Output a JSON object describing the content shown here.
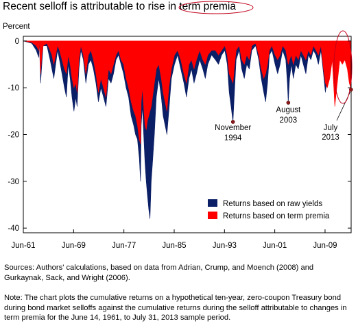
{
  "title": "Recent selloff is attributable to rise in term premia",
  "ylabel_unit": "Percent",
  "sources": "Sources: Authors' calculations, based on data from Adrian, Crump, and Moench (2008) and Gurkaynak, Sack, and Wright (2006).",
  "note": "Note: The chart plots the cumulative returns on a hypothetical ten-year, zero-coupon Treasury bond during bond market selloffs against the cumulative returns during the selloff attributable to changes in term premia for the June 14, 1961, to July 31, 2013 sample period.",
  "colors": {
    "raw": "#0b1f66",
    "term": "#ff0000",
    "highlight": "#c0001a",
    "marker": "#8b1a1a"
  },
  "chart_data": {
    "type": "area",
    "xlim": [
      1961.45,
      2013.6
    ],
    "ylim": [
      -41,
      1
    ],
    "x_tick_values": [
      1961.45,
      1969.45,
      1977.45,
      1985.45,
      1993.45,
      2001.45,
      2009.45
    ],
    "x_tick_labels": [
      "Jun-61",
      "Jun-69",
      "Jun-77",
      "Jun-85",
      "Jun-93",
      "Jun-01",
      "Jun-09"
    ],
    "y_ticks": [
      0,
      -10,
      -20,
      -30,
      -40
    ],
    "y_tick_labels": [
      "0",
      "-10",
      "-20",
      "-30",
      "-40"
    ],
    "legend_position": "bottom-right",
    "grid": false,
    "series": [
      {
        "name": "Returns based on raw yields",
        "color": "#0b1f66",
        "points": [
          [
            1961.45,
            0
          ],
          [
            1962.8,
            -0.5
          ],
          [
            1963.5,
            -2
          ],
          [
            1963.9,
            -3.5
          ],
          [
            1964.0,
            0
          ],
          [
            1964.2,
            -9
          ],
          [
            1964.4,
            -5
          ],
          [
            1964.6,
            -1
          ],
          [
            1965.2,
            -1
          ],
          [
            1965.7,
            -4
          ],
          [
            1966.0,
            -6
          ],
          [
            1966.3,
            -8
          ],
          [
            1966.6,
            -5
          ],
          [
            1966.9,
            -2
          ],
          [
            1967.2,
            -4
          ],
          [
            1967.6,
            -7
          ],
          [
            1968.0,
            -10
          ],
          [
            1968.3,
            -12
          ],
          [
            1968.6,
            -5
          ],
          [
            1968.9,
            -8
          ],
          [
            1969.2,
            -12
          ],
          [
            1969.5,
            -15
          ],
          [
            1969.8,
            -12
          ],
          [
            1970.0,
            -14
          ],
          [
            1970.3,
            -6
          ],
          [
            1970.6,
            -2
          ],
          [
            1971.0,
            -4
          ],
          [
            1971.4,
            -9
          ],
          [
            1971.8,
            -5
          ],
          [
            1972.2,
            -4
          ],
          [
            1972.6,
            -6
          ],
          [
            1973.0,
            -9
          ],
          [
            1973.4,
            -13
          ],
          [
            1973.8,
            -10
          ],
          [
            1974.2,
            -12
          ],
          [
            1974.6,
            -14
          ],
          [
            1975.0,
            -8
          ],
          [
            1975.4,
            -9
          ],
          [
            1975.8,
            -7
          ],
          [
            1976.2,
            -4
          ],
          [
            1976.6,
            -3
          ],
          [
            1977.0,
            -5
          ],
          [
            1977.4,
            -7
          ],
          [
            1977.8,
            -10
          ],
          [
            1978.2,
            -12
          ],
          [
            1978.6,
            -16
          ],
          [
            1979.0,
            -18
          ],
          [
            1979.3,
            -20
          ],
          [
            1979.6,
            -21
          ],
          [
            1979.9,
            -25
          ],
          [
            1980.1,
            -30
          ],
          [
            1980.2,
            -18
          ],
          [
            1980.4,
            -14
          ],
          [
            1980.6,
            -20
          ],
          [
            1980.8,
            -26
          ],
          [
            1981.0,
            -30
          ],
          [
            1981.2,
            -33
          ],
          [
            1981.4,
            -36
          ],
          [
            1981.6,
            -38
          ],
          [
            1981.8,
            -30
          ],
          [
            1982.0,
            -26
          ],
          [
            1982.3,
            -20
          ],
          [
            1982.6,
            -12
          ],
          [
            1983.0,
            -8
          ],
          [
            1983.4,
            -12
          ],
          [
            1983.7,
            -16
          ],
          [
            1984.0,
            -18
          ],
          [
            1984.3,
            -20
          ],
          [
            1984.6,
            -15
          ],
          [
            1985.0,
            -8
          ],
          [
            1985.5,
            -5
          ],
          [
            1986.0,
            -3
          ],
          [
            1986.5,
            -6
          ],
          [
            1987.0,
            -9
          ],
          [
            1987.4,
            -12
          ],
          [
            1987.8,
            -8
          ],
          [
            1988.2,
            -6
          ],
          [
            1988.6,
            -9
          ],
          [
            1989.0,
            -7
          ],
          [
            1989.5,
            -4
          ],
          [
            1990.0,
            -6
          ],
          [
            1990.4,
            -8
          ],
          [
            1990.8,
            -5
          ],
          [
            1991.4,
            -3
          ],
          [
            1992.0,
            -4
          ],
          [
            1992.5,
            -5
          ],
          [
            1993.0,
            -3
          ],
          [
            1993.5,
            -2
          ],
          [
            1993.9,
            -5
          ],
          [
            1994.2,
            -11
          ],
          [
            1994.5,
            -14
          ],
          [
            1994.8,
            -17.3
          ],
          [
            1995.0,
            -12
          ],
          [
            1995.3,
            -4
          ],
          [
            1995.8,
            -2
          ],
          [
            1996.2,
            -6
          ],
          [
            1996.6,
            -8
          ],
          [
            1997.0,
            -5
          ],
          [
            1997.4,
            -6
          ],
          [
            1997.8,
            -2
          ],
          [
            1998.4,
            -1
          ],
          [
            1998.9,
            -4
          ],
          [
            1999.3,
            -8
          ],
          [
            1999.7,
            -11
          ],
          [
            2000.0,
            -13
          ],
          [
            2000.3,
            -9
          ],
          [
            2000.6,
            -3
          ],
          [
            2001.0,
            -2
          ],
          [
            2001.5,
            -5
          ],
          [
            2001.9,
            -7
          ],
          [
            2002.3,
            -5
          ],
          [
            2002.7,
            -2
          ],
          [
            2003.2,
            -4
          ],
          [
            2003.45,
            -9
          ],
          [
            2003.6,
            -13.2
          ],
          [
            2003.8,
            -8
          ],
          [
            2004.1,
            -5
          ],
          [
            2004.4,
            -8
          ],
          [
            2004.8,
            -5
          ],
          [
            2005.2,
            -6
          ],
          [
            2005.6,
            -3
          ],
          [
            2006.0,
            -5
          ],
          [
            2006.4,
            -7
          ],
          [
            2006.8,
            -3
          ],
          [
            2007.2,
            -4
          ],
          [
            2007.6,
            -2
          ],
          [
            2008.0,
            -3
          ],
          [
            2008.4,
            -5
          ],
          [
            2008.8,
            -2
          ],
          [
            2009.2,
            -7
          ],
          [
            2009.5,
            -11
          ],
          [
            2009.8,
            -8
          ],
          [
            2010.2,
            -5
          ],
          [
            2010.6,
            -3
          ],
          [
            2011.0,
            -9
          ],
          [
            2011.4,
            -6
          ],
          [
            2011.8,
            -3
          ],
          [
            2012.2,
            -4
          ],
          [
            2012.6,
            -3
          ],
          [
            2013.0,
            -5
          ],
          [
            2013.3,
            -8
          ],
          [
            2013.58,
            -10.4
          ],
          [
            2013.6,
            0
          ]
        ]
      },
      {
        "name": "Returns based on term premia",
        "color": "#ff0000",
        "points": [
          [
            1961.45,
            0
          ],
          [
            1962.8,
            -0.3
          ],
          [
            1963.5,
            -1
          ],
          [
            1963.9,
            -2
          ],
          [
            1964.0,
            0
          ],
          [
            1964.2,
            -7
          ],
          [
            1964.4,
            -3
          ],
          [
            1964.6,
            -1
          ],
          [
            1965.2,
            -0.5
          ],
          [
            1965.7,
            -2
          ],
          [
            1966.0,
            -3
          ],
          [
            1966.3,
            -5
          ],
          [
            1966.6,
            -3
          ],
          [
            1966.9,
            -1
          ],
          [
            1967.2,
            -2
          ],
          [
            1967.6,
            -4
          ],
          [
            1968.0,
            -6
          ],
          [
            1968.3,
            -7
          ],
          [
            1968.6,
            -3
          ],
          [
            1968.9,
            -5
          ],
          [
            1969.2,
            -8
          ],
          [
            1969.5,
            -10
          ],
          [
            1969.8,
            -9
          ],
          [
            1970.0,
            -11
          ],
          [
            1970.3,
            -4
          ],
          [
            1970.6,
            -1
          ],
          [
            1971.0,
            -3
          ],
          [
            1971.4,
            -7
          ],
          [
            1971.8,
            -3
          ],
          [
            1972.2,
            -2
          ],
          [
            1972.6,
            -4
          ],
          [
            1973.0,
            -7
          ],
          [
            1973.4,
            -11
          ],
          [
            1973.8,
            -8
          ],
          [
            1974.2,
            -10
          ],
          [
            1974.6,
            -12
          ],
          [
            1975.0,
            -6
          ],
          [
            1975.4,
            -7
          ],
          [
            1975.8,
            -5
          ],
          [
            1976.2,
            -3
          ],
          [
            1976.6,
            -2
          ],
          [
            1977.0,
            -4
          ],
          [
            1977.4,
            -5
          ],
          [
            1977.8,
            -8
          ],
          [
            1978.2,
            -10
          ],
          [
            1978.6,
            -13
          ],
          [
            1979.0,
            -15
          ],
          [
            1979.3,
            -16
          ],
          [
            1979.6,
            -18
          ],
          [
            1979.9,
            -21
          ],
          [
            1980.1,
            -22
          ],
          [
            1980.2,
            -13
          ],
          [
            1980.4,
            -10
          ],
          [
            1980.6,
            -14
          ],
          [
            1980.8,
            -18
          ],
          [
            1981.0,
            -19
          ],
          [
            1981.2,
            -17
          ],
          [
            1981.4,
            -16
          ],
          [
            1981.6,
            -15
          ],
          [
            1981.8,
            -14
          ],
          [
            1982.0,
            -12
          ],
          [
            1982.3,
            -9
          ],
          [
            1982.6,
            -6
          ],
          [
            1983.0,
            -5
          ],
          [
            1983.4,
            -8
          ],
          [
            1983.7,
            -11
          ],
          [
            1984.0,
            -13
          ],
          [
            1984.3,
            -15
          ],
          [
            1984.6,
            -10
          ],
          [
            1985.0,
            -6
          ],
          [
            1985.5,
            -3
          ],
          [
            1986.0,
            -2
          ],
          [
            1986.5,
            -4
          ],
          [
            1987.0,
            -7
          ],
          [
            1987.4,
            -9
          ],
          [
            1987.8,
            -5
          ],
          [
            1988.2,
            -4
          ],
          [
            1988.6,
            -6
          ],
          [
            1989.0,
            -4
          ],
          [
            1989.5,
            -2
          ],
          [
            1990.0,
            -4
          ],
          [
            1990.4,
            -5
          ],
          [
            1990.8,
            -3
          ],
          [
            1991.4,
            -2
          ],
          [
            1992.0,
            -2
          ],
          [
            1992.5,
            -3
          ],
          [
            1993.0,
            -2
          ],
          [
            1993.5,
            -1
          ],
          [
            1993.9,
            -3
          ],
          [
            1994.2,
            -7
          ],
          [
            1994.5,
            -8
          ],
          [
            1994.8,
            -9
          ],
          [
            1995.0,
            -6
          ],
          [
            1995.3,
            -2
          ],
          [
            1995.8,
            -1
          ],
          [
            1996.2,
            -4
          ],
          [
            1996.6,
            -5
          ],
          [
            1997.0,
            -3
          ],
          [
            1997.4,
            -4
          ],
          [
            1997.8,
            -1
          ],
          [
            1998.4,
            -0.5
          ],
          [
            1998.9,
            -3
          ],
          [
            1999.3,
            -6
          ],
          [
            1999.7,
            -8
          ],
          [
            2000.0,
            -7
          ],
          [
            2000.3,
            -5
          ],
          [
            2000.6,
            -2
          ],
          [
            2001.0,
            -1
          ],
          [
            2001.5,
            -3
          ],
          [
            2001.9,
            -4
          ],
          [
            2002.3,
            -3
          ],
          [
            2002.7,
            -1
          ],
          [
            2003.2,
            -2
          ],
          [
            2003.45,
            -4
          ],
          [
            2003.6,
            -5
          ],
          [
            2003.8,
            -4
          ],
          [
            2004.1,
            -3
          ],
          [
            2004.4,
            -5
          ],
          [
            2004.8,
            -3
          ],
          [
            2005.2,
            -4
          ],
          [
            2005.6,
            -2
          ],
          [
            2006.0,
            -3
          ],
          [
            2006.4,
            -4
          ],
          [
            2006.8,
            -2
          ],
          [
            2007.2,
            -3
          ],
          [
            2007.6,
            -1
          ],
          [
            2008.0,
            -2
          ],
          [
            2008.4,
            -3
          ],
          [
            2008.8,
            -1
          ],
          [
            2009.2,
            -6
          ],
          [
            2009.5,
            -9
          ],
          [
            2009.8,
            -10
          ],
          [
            2010.2,
            -8
          ],
          [
            2010.6,
            -4
          ],
          [
            2011.0,
            -14
          ],
          [
            2011.4,
            -9
          ],
          [
            2011.8,
            -4
          ],
          [
            2012.2,
            -5
          ],
          [
            2012.6,
            -4
          ],
          [
            2013.0,
            -6
          ],
          [
            2013.3,
            -9
          ],
          [
            2013.58,
            -10.2
          ],
          [
            2013.6,
            0
          ]
        ]
      }
    ],
    "annotations": [
      {
        "label": [
          "November",
          "1994"
        ],
        "x": 1994.8,
        "y": -17.3
      },
      {
        "label": [
          "August",
          "2003"
        ],
        "x": 2003.6,
        "y": -13.2
      },
      {
        "label": [
          "July",
          "2013"
        ],
        "x": 2013.58,
        "y": -10.4
      }
    ]
  }
}
